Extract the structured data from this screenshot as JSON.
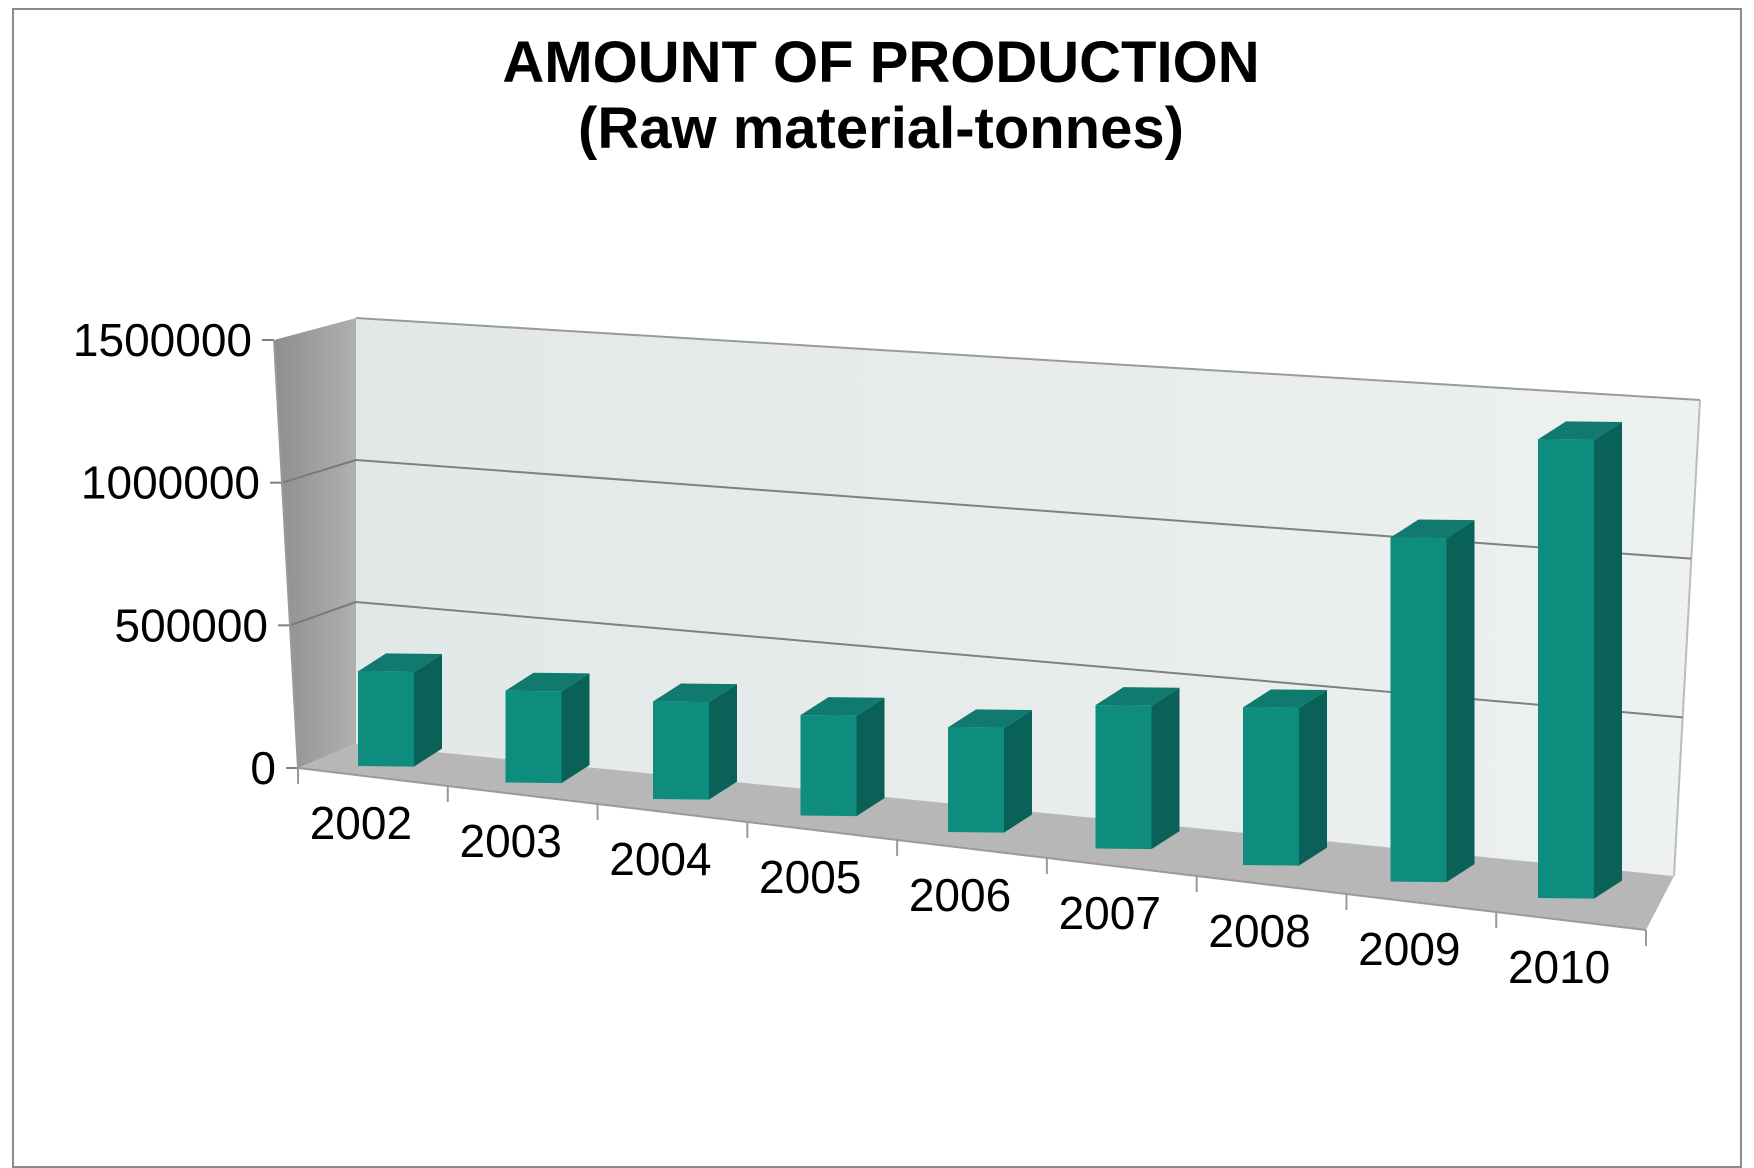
{
  "chart_data": {
    "type": "bar",
    "style": "3d-column",
    "title": "AMOUNT OF PRODUCTION",
    "subtitle": "(Raw material-tonnes)",
    "xlabel": "",
    "ylabel": "",
    "categories": [
      "2002",
      "2003",
      "2004",
      "2005",
      "2006",
      "2007",
      "2008",
      "2009",
      "2010"
    ],
    "values": [
      330000,
      320000,
      340000,
      350000,
      365000,
      500000,
      550000,
      1200000,
      1600000
    ],
    "ylim": [
      0,
      1500000
    ],
    "yticks": [
      "0",
      "500000",
      "1000000",
      "1500000"
    ],
    "grid": true,
    "legend": "none",
    "colors": {
      "bar_front": "#0e8c7e",
      "bar_side": "#0a6157",
      "bar_top": "#0f7a6d",
      "back_wall": "#e6eceb",
      "side_wall": "#a0a0a0",
      "floor": "#b7b7b7",
      "gridline": "#808080"
    }
  }
}
